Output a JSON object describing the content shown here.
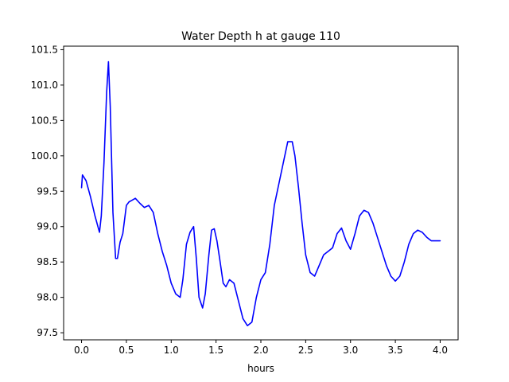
{
  "chart_data": {
    "type": "line",
    "title": "Water Depth h at gauge 110",
    "xlabel": "hours",
    "ylabel": "",
    "xlim": [
      -0.2,
      4.2
    ],
    "ylim": [
      97.4,
      101.55
    ],
    "x_ticks": [
      0.0,
      0.5,
      1.0,
      1.5,
      2.0,
      2.5,
      3.0,
      3.5,
      4.0
    ],
    "x_tick_labels": [
      "0.0",
      "0.5",
      "1.0",
      "1.5",
      "2.0",
      "2.5",
      "3.0",
      "3.5",
      "4.0"
    ],
    "y_ticks": [
      97.5,
      98.0,
      98.5,
      99.0,
      99.5,
      100.0,
      100.5,
      101.0,
      101.5
    ],
    "y_tick_labels": [
      "97.5",
      "98.0",
      "98.5",
      "99.0",
      "99.5",
      "100.0",
      "100.5",
      "101.0",
      "101.5"
    ],
    "grid": false,
    "series": [
      {
        "color": "#0000ff",
        "x": [
          0.0,
          0.01,
          0.05,
          0.1,
          0.15,
          0.2,
          0.22,
          0.25,
          0.28,
          0.3,
          0.32,
          0.35,
          0.38,
          0.4,
          0.43,
          0.46,
          0.5,
          0.53,
          0.56,
          0.6,
          0.65,
          0.7,
          0.75,
          0.8,
          0.85,
          0.9,
          0.95,
          1.0,
          1.05,
          1.1,
          1.13,
          1.17,
          1.21,
          1.25,
          1.28,
          1.31,
          1.35,
          1.38,
          1.42,
          1.45,
          1.48,
          1.51,
          1.54,
          1.58,
          1.61,
          1.65,
          1.7,
          1.75,
          1.8,
          1.85,
          1.9,
          1.95,
          2.0,
          2.05,
          2.1,
          2.15,
          2.2,
          2.25,
          2.3,
          2.35,
          2.38,
          2.42,
          2.46,
          2.5,
          2.55,
          2.6,
          2.65,
          2.7,
          2.75,
          2.8,
          2.85,
          2.9,
          2.95,
          3.0,
          3.05,
          3.1,
          3.15,
          3.2,
          3.25,
          3.3,
          3.35,
          3.4,
          3.45,
          3.5,
          3.55,
          3.6,
          3.65,
          3.7,
          3.75,
          3.8,
          3.85,
          3.9,
          3.95,
          4.0
        ],
        "y": [
          99.55,
          99.73,
          99.65,
          99.42,
          99.15,
          98.92,
          99.15,
          99.9,
          100.9,
          101.33,
          100.7,
          99.2,
          98.55,
          98.55,
          98.78,
          98.9,
          99.3,
          99.35,
          99.37,
          99.4,
          99.33,
          99.27,
          99.3,
          99.2,
          98.9,
          98.65,
          98.45,
          98.2,
          98.05,
          98.0,
          98.25,
          98.75,
          98.92,
          99.0,
          98.55,
          98.0,
          97.85,
          98.05,
          98.6,
          98.95,
          98.97,
          98.8,
          98.55,
          98.2,
          98.15,
          98.25,
          98.2,
          97.95,
          97.7,
          97.6,
          97.65,
          98.0,
          98.25,
          98.35,
          98.75,
          99.3,
          99.6,
          99.9,
          100.2,
          100.2,
          100.0,
          99.55,
          99.05,
          98.6,
          98.35,
          98.3,
          98.45,
          98.6,
          98.65,
          98.7,
          98.9,
          98.98,
          98.8,
          98.68,
          98.9,
          99.15,
          99.23,
          99.2,
          99.05,
          98.85,
          98.65,
          98.45,
          98.3,
          98.23,
          98.3,
          98.5,
          98.75,
          98.9,
          98.95,
          98.92,
          98.85,
          98.8,
          98.8,
          98.8
        ]
      }
    ]
  }
}
